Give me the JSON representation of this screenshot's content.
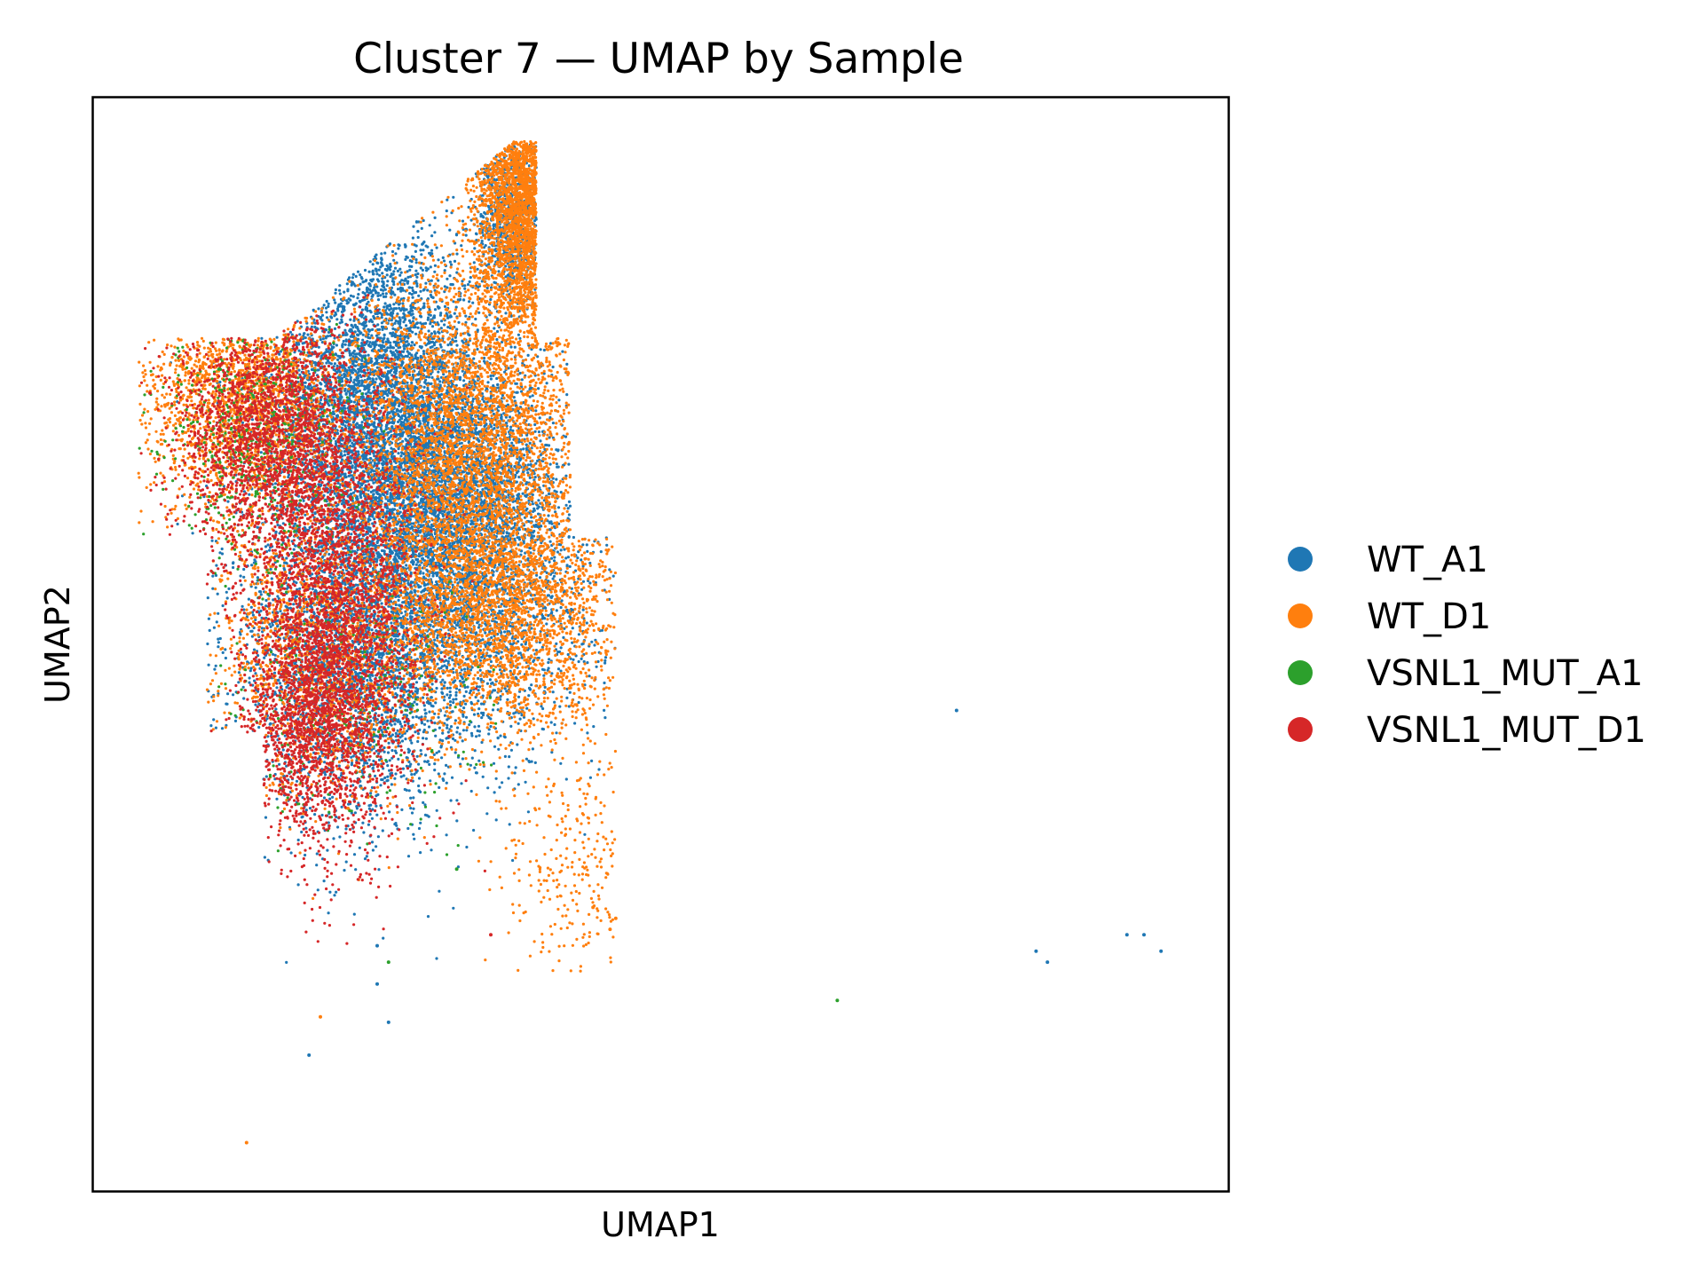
{
  "chart_data": {
    "type": "scatter",
    "title": "Cluster 7 — UMAP by Sample",
    "xlabel": "UMAP1",
    "ylabel": "UMAP2",
    "xlim": [
      0,
      10
    ],
    "ylim": [
      0,
      10
    ],
    "ticks": false,
    "grid": false,
    "legend_position": "right",
    "series": [
      {
        "name": "WT_A1",
        "color": "#1f77b4",
        "clusters": [
          {
            "cx": 2.5,
            "cy": 7.2,
            "sx": 0.45,
            "sy": 0.8,
            "n": 4500
          },
          {
            "cx": 3.0,
            "cy": 5.6,
            "sx": 0.7,
            "sy": 0.75,
            "n": 4000
          },
          {
            "cx": 2.3,
            "cy": 4.7,
            "sx": 0.55,
            "sy": 0.7,
            "n": 2000
          },
          {
            "cx": 3.3,
            "cy": 6.5,
            "sx": 0.4,
            "sy": 0.6,
            "n": 2000
          },
          {
            "cx": 3.7,
            "cy": 8.9,
            "sx": 0.18,
            "sy": 0.4,
            "n": 800
          }
        ],
        "outliers": [
          [
            7.6,
            4.4
          ],
          [
            8.3,
            2.2
          ],
          [
            8.4,
            2.1
          ],
          [
            9.1,
            2.35
          ],
          [
            9.25,
            2.35
          ],
          [
            9.4,
            2.2
          ],
          [
            1.9,
            1.25
          ],
          [
            2.6,
            1.55
          ],
          [
            2.5,
            1.9
          ],
          [
            2.5,
            2.25
          ]
        ]
      },
      {
        "name": "WT_D1",
        "color": "#ff7f0e",
        "clusters": [
          {
            "cx": 3.8,
            "cy": 9.1,
            "sx": 0.22,
            "sy": 0.65,
            "n": 2200
          },
          {
            "cx": 3.3,
            "cy": 6.9,
            "sx": 0.5,
            "sy": 0.8,
            "n": 3600
          },
          {
            "cx": 3.6,
            "cy": 5.3,
            "sx": 0.55,
            "sy": 0.6,
            "n": 2800
          },
          {
            "cx": 1.3,
            "cy": 7.2,
            "sx": 0.45,
            "sy": 0.5,
            "n": 1800
          },
          {
            "cx": 2.0,
            "cy": 5.0,
            "sx": 0.5,
            "sy": 0.7,
            "n": 1600
          },
          {
            "cx": 4.3,
            "cy": 3.0,
            "sx": 0.35,
            "sy": 0.5,
            "n": 250
          }
        ],
        "outliers": [
          [
            1.35,
            0.45
          ],
          [
            2.0,
            1.6
          ],
          [
            4.55,
            2.4
          ],
          [
            4.6,
            2.5
          ],
          [
            4.4,
            2.6
          ]
        ]
      },
      {
        "name": "VSNL1_MUT_A1",
        "color": "#2ca02c",
        "clusters": [
          {
            "cx": 1.4,
            "cy": 6.9,
            "sx": 0.4,
            "sy": 0.6,
            "n": 500
          },
          {
            "cx": 2.3,
            "cy": 4.4,
            "sx": 0.6,
            "sy": 0.55,
            "n": 250
          }
        ],
        "outliers": [
          [
            6.55,
            1.75
          ],
          [
            2.6,
            2.1
          ],
          [
            3.2,
            2.95
          ]
        ]
      },
      {
        "name": "VSNL1_MUT_D1",
        "color": "#d62728",
        "clusters": [
          {
            "cx": 1.55,
            "cy": 7.0,
            "sx": 0.4,
            "sy": 0.55,
            "n": 2000
          },
          {
            "cx": 2.1,
            "cy": 5.2,
            "sx": 0.38,
            "sy": 1.0,
            "n": 3200
          },
          {
            "cx": 1.9,
            "cy": 4.2,
            "sx": 0.3,
            "sy": 0.45,
            "n": 900
          }
        ],
        "outliers": [
          [
            3.5,
            2.35
          ],
          [
            1.2,
            6.8
          ],
          [
            0.5,
            7.3
          ]
        ]
      }
    ]
  }
}
